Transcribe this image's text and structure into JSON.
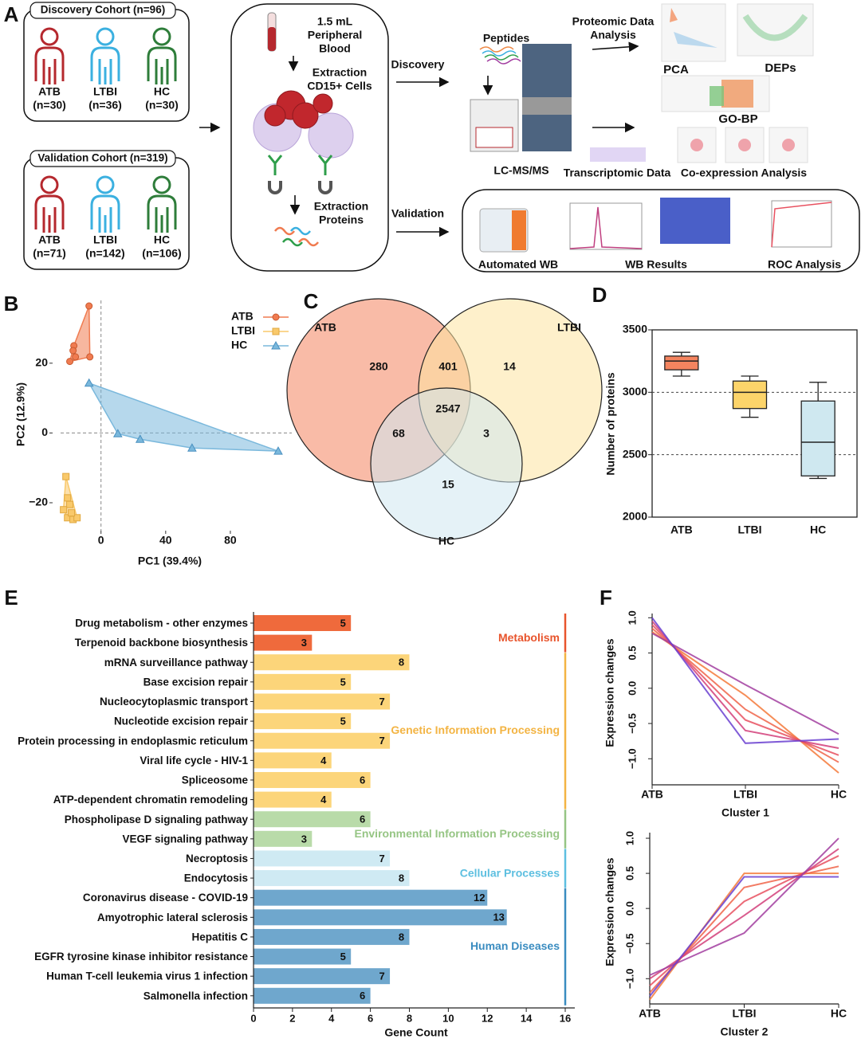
{
  "panel_a": {
    "label": "A",
    "discovery": {
      "title": "Discovery Cohort (n=96)",
      "groups": [
        {
          "name": "ATB",
          "n": "(n=30)",
          "color": "#b5282e"
        },
        {
          "name": "LTBI",
          "n": "(n=36)",
          "color": "#3bb0e0"
        },
        {
          "name": "HC",
          "n": "(n=30)",
          "color": "#2e7d3a"
        }
      ]
    },
    "validation": {
      "title": "Validation Cohort (n=319)",
      "groups": [
        {
          "name": "ATB",
          "n": "(n=71)",
          "color": "#b5282e"
        },
        {
          "name": "LTBI",
          "n": "(n=142)",
          "color": "#3bb0e0"
        },
        {
          "name": "HC",
          "n": "(n=106)",
          "color": "#2e7d3a"
        }
      ]
    },
    "sample": [
      "1.5 mL",
      "Peripheral",
      "Blood"
    ],
    "cells": [
      "Extraction",
      "CD15+ Cells"
    ],
    "proteins": [
      "Extraction",
      "Proteins"
    ],
    "discovery_arrow": "Discovery",
    "validation_arrow": "Validation",
    "peptides": "Peptides",
    "lcms": "LC-MS/MS",
    "proteomic": [
      "Proteomic Data",
      "Analysis"
    ],
    "pca": "PCA",
    "deps": "DEPs",
    "gobp": "GO-BP",
    "transcriptomic": "Transcriptomic Data",
    "coexpression": "Co-expression Analysis",
    "automated_wb": "Automated WB",
    "wb_results": "WB Results",
    "roc": "ROC Analysis"
  },
  "chart_data": [
    {
      "type": "scatter",
      "panel": "B",
      "xlabel": "PC1 (39.4%)",
      "ylabel": "PC2 (12.9%)",
      "xlim": [
        -25,
        118
      ],
      "ylim": [
        -28,
        38
      ],
      "xticks": [
        0,
        40,
        80
      ],
      "yticks": [
        {
          "value": -20,
          "label": "−20"
        },
        0,
        20
      ],
      "series": [
        {
          "name": "ATB",
          "color": "#f07b50",
          "marker": "circle",
          "x": [
            -7.4,
            -16.8,
            -17.3,
            -15.8,
            -6.9,
            -19.3
          ],
          "y": [
            36.4,
            25,
            23.6,
            21.8,
            21.8,
            20.5
          ]
        },
        {
          "name": "LTBI",
          "color": "#f9c96b",
          "marker": "square",
          "x": [
            -21.7,
            -20.7,
            -19.3,
            -23.2,
            -20.7,
            -17.3,
            -14.8,
            -18.3
          ],
          "y": [
            -12.5,
            -18.6,
            -20.5,
            -22,
            -24.3,
            -24.8,
            -24.3,
            -22.9
          ]
        },
        {
          "name": "HC",
          "color": "#7ab8dc",
          "marker": "triangle",
          "x": [
            -7.4,
            10.4,
            24.2,
            56.3,
            109.6
          ],
          "y": [
            14.3,
            -0.2,
            -1.8,
            -4.3,
            -5.2
          ]
        }
      ]
    },
    {
      "type": "venn",
      "panel": "C",
      "sets": [
        "ATB",
        "LTBI",
        "HC"
      ],
      "colors": [
        "#f4845f",
        "#fde3a0",
        "#cfe8f0"
      ],
      "values": [
        280,
        401,
        14,
        2547,
        68,
        3,
        15
      ]
    },
    {
      "type": "box",
      "panel": "D",
      "ylabel": "Number of proteins",
      "categories": [
        "ATB",
        "LTBI",
        "HC"
      ],
      "colors": [
        "#f4845f",
        "#fcd46a",
        "#cfe8f0"
      ],
      "ylim": [
        2000,
        3500
      ],
      "yticks": [
        2000,
        2500,
        3000,
        3500
      ],
      "grid": true,
      "boxes": [
        {
          "min": 3130,
          "q1": 3180,
          "median": 3250,
          "q3": 3290,
          "max": 3320
        },
        {
          "min": 2800,
          "q1": 2870,
          "median": 3000,
          "q3": 3090,
          "max": 3130
        },
        {
          "min": 2310,
          "q1": 2330,
          "median": 2600,
          "q3": 2930,
          "max": 3080
        }
      ]
    },
    {
      "type": "hbar",
      "panel": "E",
      "xlabel": "Gene Count",
      "xlim": [
        0,
        16
      ],
      "xticks": [
        0,
        2,
        4,
        6,
        8,
        10,
        12,
        14,
        16
      ],
      "groups": [
        {
          "name": "Metabolism",
          "color": "#ef6a3c",
          "label_color": "#e8542c",
          "categories": [
            "Drug metabolism - other enzymes",
            "Terpenoid backbone biosynthesis"
          ],
          "values": [
            5,
            3
          ]
        },
        {
          "name": "Genetic Information Processing",
          "color": "#fcd57a",
          "label_color": "#f3b443",
          "categories": [
            "mRNA surveillance pathway",
            "Base excision repair",
            "Nucleocytoplasmic transport",
            "Nucleotide excision repair",
            "Protein processing in endoplasmic reticulum",
            "Viral life cycle - HIV-1",
            "Spliceosome",
            "ATP-dependent chromatin remodeling"
          ],
          "values": [
            8,
            5,
            7,
            5,
            7,
            4,
            6,
            4
          ]
        },
        {
          "name": "Environmental Information Processing",
          "color": "#b9dba9",
          "label_color": "#96c584",
          "categories": [
            "Phospholipase D signaling pathway",
            "VEGF signaling pathway"
          ],
          "values": [
            6,
            3
          ]
        },
        {
          "name": "Cellular Processes",
          "color": "#cfeaf3",
          "label_color": "#5dbfe0",
          "categories": [
            "Necroptosis",
            "Endocytosis"
          ],
          "values": [
            7,
            8
          ]
        },
        {
          "name": "Human Diseases",
          "color": "#6fa7cd",
          "label_color": "#3a8cc0",
          "categories": [
            "Coronavirus disease - COVID-19",
            "Amyotrophic lateral sclerosis",
            "Hepatitis C",
            "EGFR tyrosine kinase inhibitor resistance",
            "Human T-cell leukemia virus 1 infection",
            "Salmonella infection"
          ],
          "values": [
            12,
            13,
            8,
            5,
            7,
            6
          ]
        }
      ]
    },
    {
      "type": "line",
      "panel": "F",
      "xlabel": "Cluster 1",
      "ylabel": "Expression changes",
      "categories": [
        "ATB",
        "LTBI",
        "HC"
      ],
      "ylim": [
        -1.37,
        1.06
      ],
      "yticks": [
        {
          "value": -1,
          "label": "−1.0"
        },
        {
          "value": -0.5,
          "label": "−0.5"
        },
        {
          "value": 0,
          "label": "0.0"
        },
        0.5,
        {
          "value": 1,
          "label": "1.0"
        }
      ],
      "series": [
        {
          "color": "#f5793a",
          "values": [
            0.8,
            -0.1,
            -1.2
          ]
        },
        {
          "color": "#f06449",
          "values": [
            0.85,
            -0.3,
            -1.05
          ]
        },
        {
          "color": "#e8505f",
          "values": [
            0.9,
            -0.45,
            -0.95
          ]
        },
        {
          "color": "#d23f7a",
          "values": [
            0.95,
            -0.6,
            -0.85
          ]
        },
        {
          "color": "#a23ea0",
          "values": [
            0.78,
            0.05,
            -0.65
          ]
        },
        {
          "color": "#6a3fd0",
          "values": [
            1.0,
            -0.78,
            -0.72
          ]
        }
      ]
    },
    {
      "type": "line",
      "ylabel": "Expression changes",
      "xlabel": "Cluster 2",
      "categories": [
        "ATB",
        "LTBI",
        "HC"
      ],
      "ylim": [
        -1.36,
        1.08
      ],
      "yticks": [
        {
          "value": -1,
          "label": "−1.0"
        },
        {
          "value": -0.5,
          "label": "−0.5"
        },
        {
          "value": 0,
          "label": "0.0"
        },
        0.5,
        {
          "value": 1,
          "label": "1.0"
        }
      ],
      "series": [
        {
          "color": "#f5793a",
          "values": [
            -1.3,
            0.5,
            0.5
          ]
        },
        {
          "color": "#f06449",
          "values": [
            -1.2,
            0.3,
            0.6
          ]
        },
        {
          "color": "#e8505f",
          "values": [
            -1.1,
            0.1,
            0.75
          ]
        },
        {
          "color": "#d23f7a",
          "values": [
            -1.0,
            -0.1,
            0.85
          ]
        },
        {
          "color": "#a23ea0",
          "values": [
            -0.95,
            -0.35,
            1.0
          ]
        },
        {
          "color": "#6a3fd0",
          "values": [
            -1.25,
            0.45,
            0.45
          ]
        }
      ]
    }
  ]
}
